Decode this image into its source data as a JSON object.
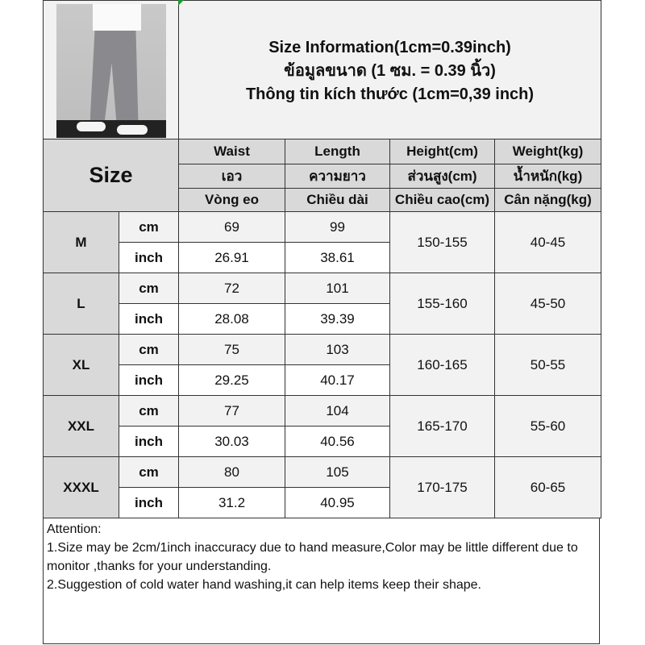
{
  "title_lines": [
    "Size Information(1cm=0.39inch)",
    "ข้อมูลขนาด (1 ซม. = 0.39 นิ้ว)",
    "Thông tin kích thước (1cm=0,39 inch)"
  ],
  "size_header": "Size",
  "columns": [
    [
      "Waist",
      "เอว",
      "Vòng eo"
    ],
    [
      "Length",
      "ความยาว",
      "Chiều dài"
    ],
    [
      "Height(cm)",
      "ส่วนสูง(cm)",
      "Chiều cao(cm)"
    ],
    [
      "Weight(kg)",
      "น้ำหนัก(kg)",
      "Cân nặng(kg)"
    ]
  ],
  "units": {
    "cm": "cm",
    "inch": "inch"
  },
  "rows": [
    {
      "size": "M",
      "cm": [
        "69",
        "99"
      ],
      "inch": [
        "26.91",
        "38.61"
      ],
      "height": "150-155",
      "weight": "40-45"
    },
    {
      "size": "L",
      "cm": [
        "72",
        "101"
      ],
      "inch": [
        "28.08",
        "39.39"
      ],
      "height": "155-160",
      "weight": "45-50"
    },
    {
      "size": "XL",
      "cm": [
        "75",
        "103"
      ],
      "inch": [
        "29.25",
        "40.17"
      ],
      "height": "160-165",
      "weight": "50-55"
    },
    {
      "size": "XXL",
      "cm": [
        "77",
        "104"
      ],
      "inch": [
        "30.03",
        "40.56"
      ],
      "height": "165-170",
      "weight": "55-60"
    },
    {
      "size": "XXXL",
      "cm": [
        "80",
        "105"
      ],
      "inch": [
        "31.2",
        "40.95"
      ],
      "height": "170-175",
      "weight": "60-65"
    }
  ],
  "attention": [
    "Attention:",
    "1.Size may be 2cm/1inch inaccuracy due to hand measure,Color may be little different due to monitor ,thanks for your understanding.",
    "2.Suggestion of cold water hand washing,it can help items keep their shape."
  ],
  "colors": {
    "header_bg": "#f2f2f2",
    "label_bg": "#d9d9d9",
    "border": "#333333"
  }
}
